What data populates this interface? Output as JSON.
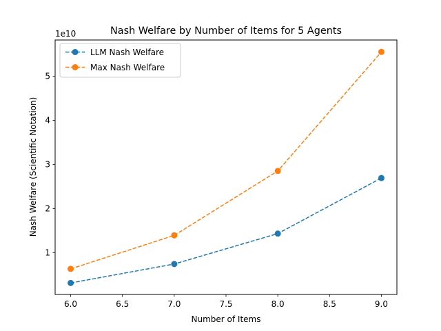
{
  "chart_data": {
    "type": "line",
    "title": "Nash Welfare by Number of Items for 5 Agents",
    "xlabel": "Number of Items",
    "ylabel": "Nash Welfare (Scientific Notation)",
    "y_offset_label": "1e10",
    "x": [
      6.0,
      7.0,
      8.0,
      9.0
    ],
    "xlim": [
      5.85,
      9.15
    ],
    "ylim": [
      0.05,
      5.82
    ],
    "x_ticks": [
      "6.0",
      "6.5",
      "7.0",
      "7.5",
      "8.0",
      "8.5",
      "9.0"
    ],
    "y_ticks": [
      "1",
      "2",
      "3",
      "4",
      "5"
    ],
    "y_scale_note": "values in units of 1e10",
    "grid": false,
    "legend_position": "top-left",
    "series": [
      {
        "name": "LLM Nash Welfare",
        "values": [
          0.31,
          0.74,
          1.43,
          2.69
        ],
        "color": "#1f77b4",
        "linestyle": "dashed",
        "marker": "circle"
      },
      {
        "name": "Max Nash Welfare",
        "values": [
          0.63,
          1.39,
          2.85,
          5.55
        ],
        "color": "#ff7f0e",
        "linestyle": "dashed",
        "marker": "circle"
      }
    ]
  }
}
